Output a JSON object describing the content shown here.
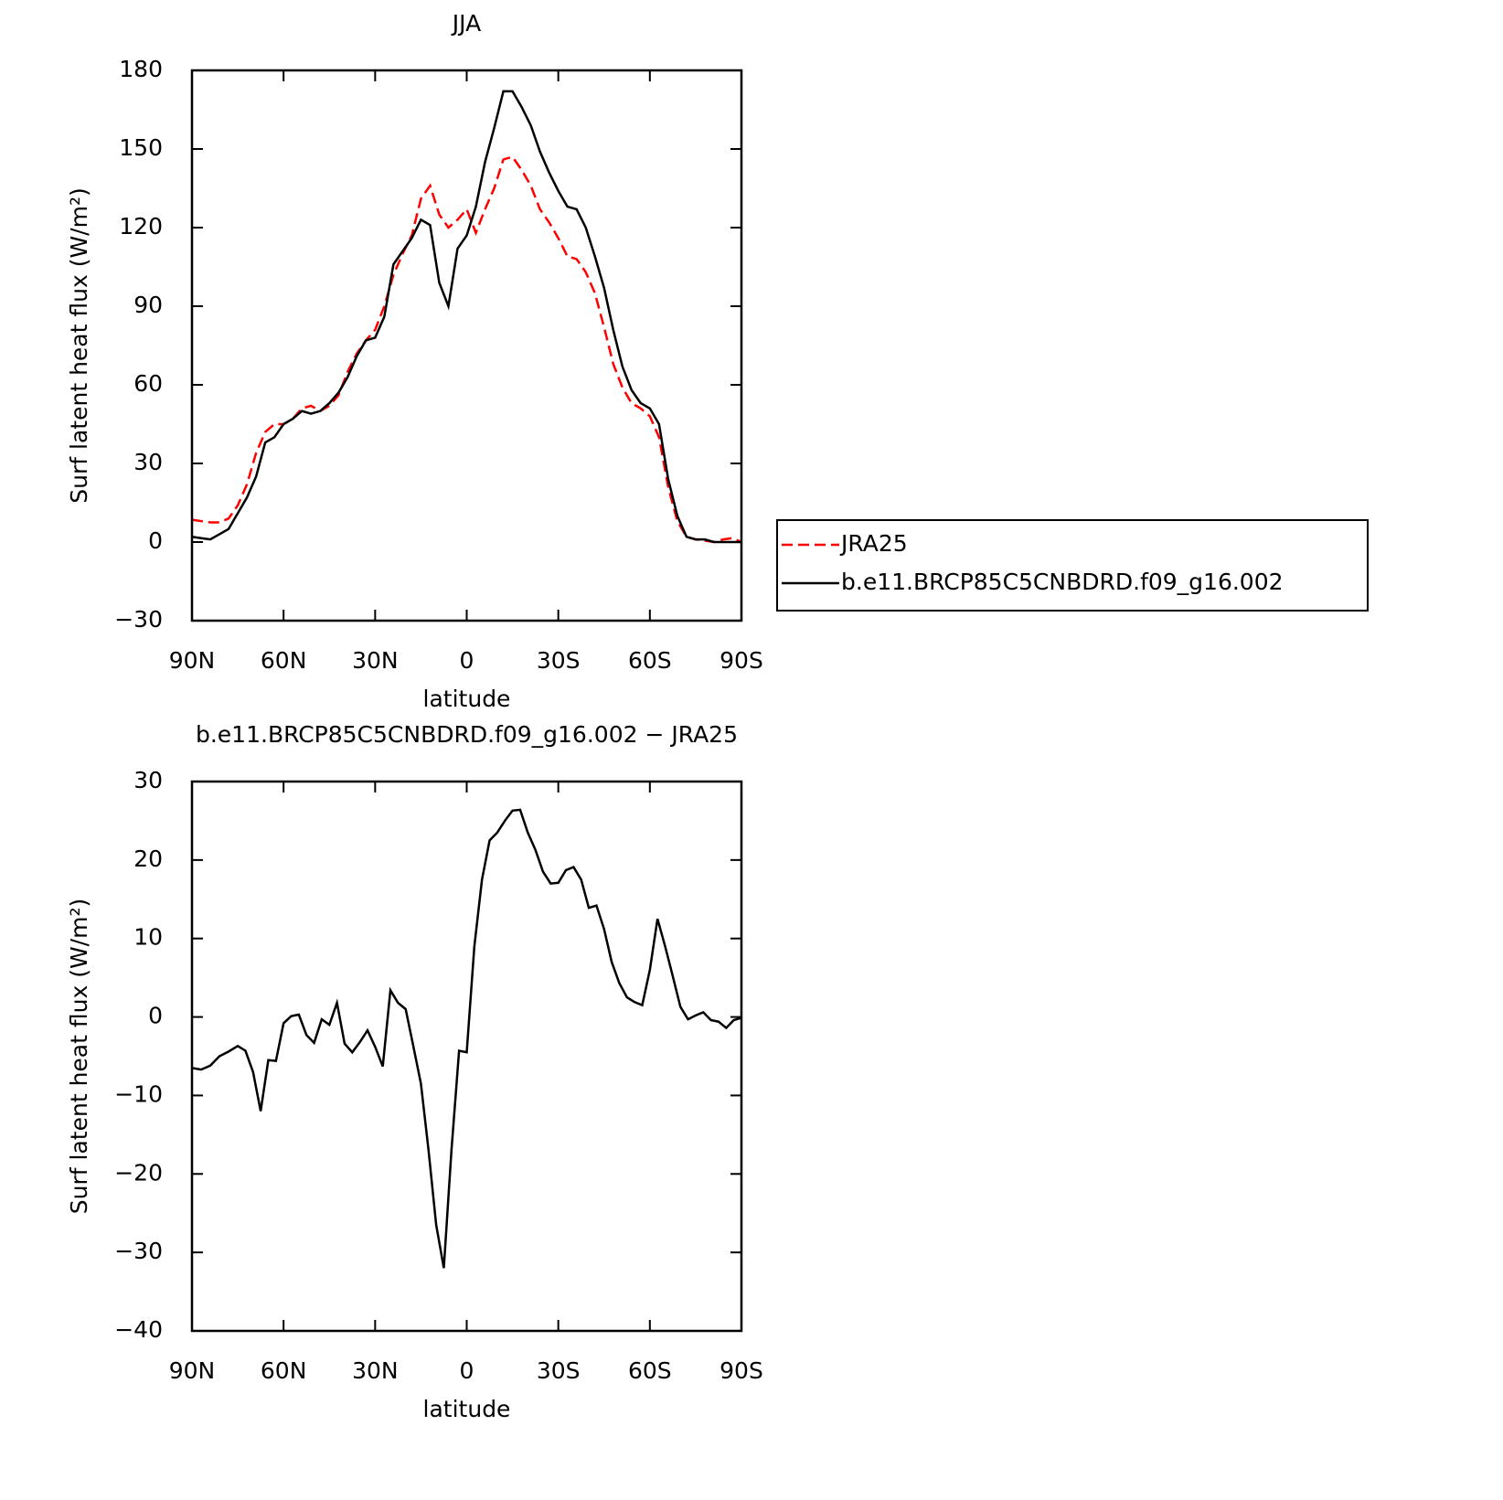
{
  "chart_data": [
    {
      "type": "line",
      "title": "JJA",
      "xlabel": "latitude",
      "ylabel": "Surf latent heat flux (W/m²)",
      "x": [
        90,
        87,
        84,
        81,
        78,
        75,
        72,
        69,
        66,
        63,
        60,
        57,
        54,
        51,
        48,
        45,
        42,
        39,
        36,
        33,
        30,
        27,
        24,
        21,
        18,
        15,
        12,
        9,
        6,
        3,
        0,
        -3,
        -6,
        -9,
        -12,
        -15,
        -18,
        -21,
        -24,
        -27,
        -30,
        -33,
        -36,
        -39,
        -42,
        -45,
        -48,
        -51,
        -54,
        -57,
        -60,
        -63,
        -66,
        -69,
        -72,
        -75,
        -78,
        -81,
        -84,
        -87,
        -90
      ],
      "series": [
        {
          "name": "JRA25",
          "color": "#ff0000",
          "style": "dashed",
          "values": [
            8.5,
            8,
            7.5,
            7.5,
            9,
            14,
            22,
            34,
            42,
            45,
            45,
            47,
            51,
            52,
            50,
            52,
            56,
            65,
            72,
            77,
            81,
            90,
            102,
            110,
            117,
            131,
            136,
            125,
            120,
            123,
            127,
            118,
            127,
            135,
            146,
            147,
            142,
            136,
            127,
            122,
            116,
            109,
            108,
            103,
            95,
            82,
            68,
            59,
            53,
            51,
            48,
            40,
            21,
            8,
            2,
            1,
            0.5,
            0,
            1,
            1.5,
            0
          ]
        },
        {
          "name": "b.e11.BRCP85C5CNBDRD.f09_g16.002",
          "color": "#000000",
          "style": "solid",
          "values": [
            2,
            1.5,
            1,
            3,
            5,
            11,
            17,
            25,
            38,
            40,
            45,
            47,
            50,
            49,
            50,
            53,
            57,
            63,
            71,
            77,
            78,
            86,
            106,
            111,
            116,
            123,
            121,
            99,
            90,
            112,
            117,
            128,
            145,
            158,
            172,
            172,
            166,
            159,
            149,
            141,
            134,
            128,
            127,
            120,
            109,
            97,
            81,
            67,
            58,
            53,
            51,
            45,
            24,
            10,
            2,
            1,
            1,
            0,
            0,
            0,
            0
          ]
        }
      ],
      "xlim": [
        90,
        -90
      ],
      "xticks": [
        {
          "value": 90,
          "label": "90N"
        },
        {
          "value": 60,
          "label": "60N"
        },
        {
          "value": 30,
          "label": "30N"
        },
        0,
        {
          "value": -30,
          "label": "30S"
        },
        {
          "value": -60,
          "label": "60S"
        },
        {
          "value": -90,
          "label": "90S"
        }
      ],
      "ylim": [
        -30,
        180
      ],
      "yticks": [
        {
          "value": -30,
          "label": "−30"
        },
        0,
        30,
        60,
        90,
        120,
        150,
        180
      ],
      "legend": "outside right"
    },
    {
      "type": "line",
      "title": "b.e11.BRCP85C5CNBDRD.f09_g16.002 − JRA25",
      "xlabel": "latitude",
      "ylabel": "Surf latent heat flux (W/m²)",
      "x": [
        90,
        87,
        84,
        81,
        78,
        75,
        72.5,
        70,
        67.5,
        65,
        62.5,
        60,
        57.5,
        55,
        52.5,
        50,
        47.5,
        45,
        42.5,
        40,
        37.5,
        35,
        32.5,
        30,
        27.5,
        25,
        22.5,
        20,
        17.5,
        15,
        12.5,
        10,
        7.5,
        5,
        2.5,
        0,
        -2.5,
        -5,
        -7.5,
        -10,
        -12.5,
        -15,
        -17.5,
        -20,
        -22.5,
        -25,
        -27.5,
        -30,
        -32.5,
        -35,
        -37.5,
        -40,
        -42.5,
        -45,
        -47.5,
        -50,
        -52.5,
        -55,
        -57.5,
        -60,
        -62.5,
        -65,
        -67.5,
        -70,
        -72.5,
        -75,
        -77.5,
        -80,
        -82.5,
        -85,
        -87.5,
        -90
      ],
      "series": [
        {
          "name": "b.e11.BRCP85C5CNBDRD.f09_g16.002 − JRA25",
          "color": "#000000",
          "style": "solid",
          "values": [
            -6.5,
            -6.7,
            -6.2,
            -5,
            -4.4,
            -3.7,
            -4.3,
            -7,
            -12,
            -5.5,
            -5.6,
            -0.8,
            0.1,
            0.3,
            -2.3,
            -3.3,
            -0.3,
            -1,
            1.8,
            -3.4,
            -4.5,
            -3.2,
            -1.7,
            -3.8,
            -6.3,
            3.4,
            1.8,
            1,
            -3.7,
            -8.5,
            -17,
            -26.5,
            -32,
            -17,
            -4.3,
            -4.5,
            9,
            17.5,
            22.5,
            23.5,
            25,
            26.3,
            26.4,
            23.5,
            21.3,
            18.5,
            17,
            17.1,
            18.7,
            19.1,
            17.5,
            13.9,
            14.2,
            11.2,
            7,
            4.3,
            2.5,
            1.9,
            1.5,
            6,
            12.5,
            9,
            5.2,
            1.3,
            -0.3,
            0.2,
            0.6,
            -0.4,
            -0.6,
            -1.4,
            -0.4,
            -0.1
          ]
        }
      ],
      "xlim": [
        90,
        -90
      ],
      "xticks": [
        {
          "value": 90,
          "label": "90N"
        },
        {
          "value": 60,
          "label": "60N"
        },
        {
          "value": 30,
          "label": "30N"
        },
        0,
        {
          "value": -30,
          "label": "30S"
        },
        {
          "value": -60,
          "label": "60S"
        },
        {
          "value": -90,
          "label": "90S"
        }
      ],
      "ylim": [
        -40,
        30
      ],
      "yticks": [
        {
          "value": -40,
          "label": "−40"
        },
        {
          "value": -30,
          "label": "−30"
        },
        {
          "value": -20,
          "label": "−20"
        },
        {
          "value": -10,
          "label": "−10"
        },
        0,
        10,
        20,
        30
      ]
    }
  ]
}
